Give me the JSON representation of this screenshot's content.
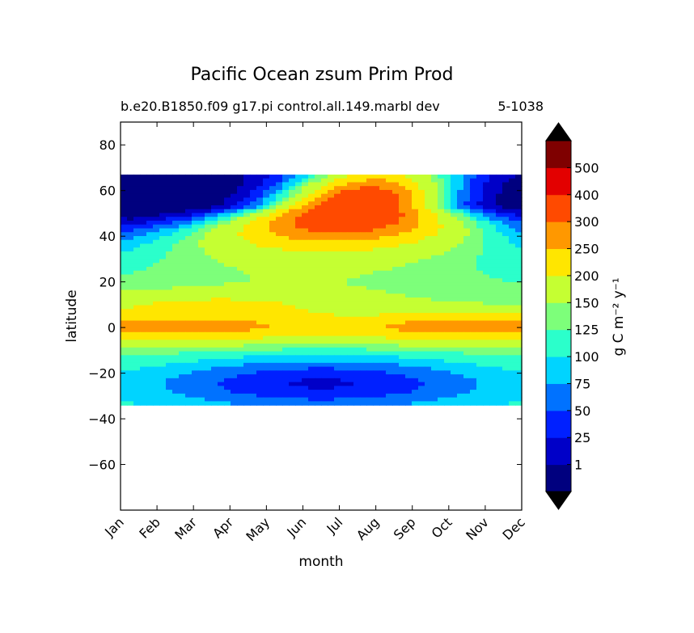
{
  "chart_data": {
    "type": "heatmap",
    "title": "Pacific Ocean zsum Prim Prod",
    "subtitle_left": "b.e20.B1850.f09 g17.pi control.all.149.marbl dev",
    "subtitle_right": "5-1038",
    "xlabel": "month",
    "ylabel": "latitude",
    "x_categories": [
      "Jan",
      "Feb",
      "Mar",
      "Apr",
      "May",
      "Jun",
      "Jul",
      "Aug",
      "Sep",
      "Oct",
      "Nov",
      "Dec"
    ],
    "y_ticks": [
      80,
      60,
      40,
      20,
      0,
      -20,
      -40,
      -60
    ],
    "y_tick_labels": [
      "80",
      "60",
      "40",
      "20",
      "0",
      "−20",
      "−40",
      "−60"
    ],
    "ylim": [
      -80,
      90
    ],
    "data_lat_range": [
      -34,
      67
    ],
    "colorbar": {
      "label": "g C m⁻² y⁻¹",
      "levels": [
        1,
        25,
        50,
        75,
        100,
        125,
        150,
        200,
        250,
        300,
        400,
        500
      ],
      "level_labels": [
        "1",
        "25",
        "50",
        "75",
        "100",
        "125",
        "150",
        "200",
        "250",
        "300",
        "400",
        "500"
      ],
      "colors": [
        "#00007f",
        "#0000c8",
        "#0020ff",
        "#0072ff",
        "#00d4ff",
        "#2bffcb",
        "#7dff7a",
        "#c5ff32",
        "#ffe600",
        "#ff9800",
        "#ff4a00",
        "#e30000",
        "#7f0000"
      ],
      "extend": "both"
    },
    "grid": false
  }
}
